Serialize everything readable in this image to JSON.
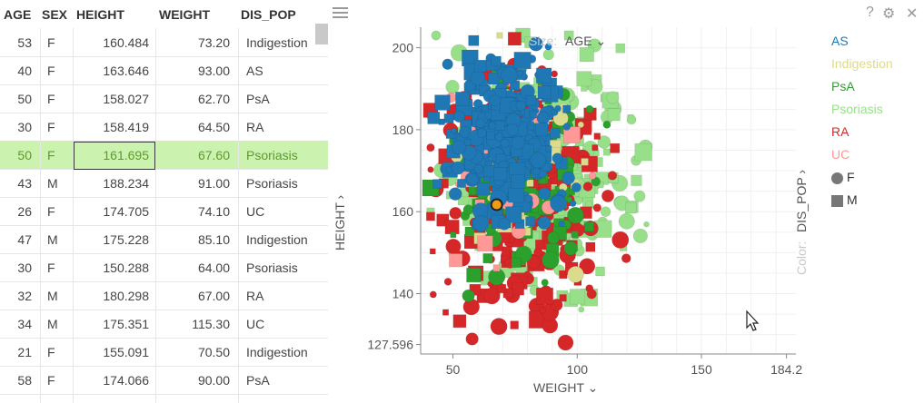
{
  "table": {
    "columns": [
      "AGE",
      "SEX",
      "HEIGHT",
      "WEIGHT",
      "DIS_POP"
    ],
    "rows": [
      [
        "53",
        "F",
        "160.484",
        "73.20",
        "Indigestion"
      ],
      [
        "40",
        "F",
        "163.646",
        "93.00",
        "AS"
      ],
      [
        "50",
        "F",
        "158.027",
        "62.70",
        "PsA"
      ],
      [
        "30",
        "F",
        "158.419",
        "64.50",
        "RA"
      ],
      [
        "50",
        "F",
        "161.695",
        "67.60",
        "Psoriasis"
      ],
      [
        "43",
        "M",
        "188.234",
        "91.00",
        "Psoriasis"
      ],
      [
        "26",
        "F",
        "174.705",
        "74.10",
        "UC"
      ],
      [
        "47",
        "M",
        "175.228",
        "85.10",
        "Indigestion"
      ],
      [
        "30",
        "F",
        "150.288",
        "64.00",
        "Psoriasis"
      ],
      [
        "32",
        "M",
        "180.298",
        "67.00",
        "RA"
      ],
      [
        "34",
        "M",
        "175.351",
        "115.30",
        "UC"
      ],
      [
        "21",
        "F",
        "155.091",
        "70.50",
        "Indigestion"
      ],
      [
        "58",
        "F",
        "174.066",
        "90.00",
        "PsA"
      ]
    ],
    "selected_row": 4
  },
  "toolbar": {
    "help": "?",
    "settings": "⚙",
    "close": "✕"
  },
  "chart_data": {
    "type": "scatter",
    "xlabel": "WEIGHT ⌄",
    "ylabel": "HEIGHT ›",
    "size_label": "Size:",
    "size_value": "AGE ⌄",
    "color_label": "Color:",
    "color_value": "DIS_POP ›",
    "x_ticks": [
      "50",
      "100",
      "150",
      "184.2"
    ],
    "x_tick_values": [
      50,
      100,
      150,
      184.2
    ],
    "y_ticks": [
      "200",
      "180",
      "160",
      "140",
      "127.596"
    ],
    "y_tick_values": [
      200,
      180,
      160,
      140,
      127.596
    ],
    "xlim": [
      37,
      188
    ],
    "ylim": [
      125.5,
      205
    ],
    "highlight": {
      "x": 67.6,
      "y": 161.695
    },
    "series": [
      {
        "name": "AS",
        "color": "#1f77b4"
      },
      {
        "name": "Indigestion",
        "color": "#dbdb8d"
      },
      {
        "name": "PsA",
        "color": "#2ca02c"
      },
      {
        "name": "Psoriasis",
        "color": "#98df8a"
      },
      {
        "name": "RA",
        "color": "#d62728"
      },
      {
        "name": "UC",
        "color": "#ff9896"
      }
    ],
    "shape_legend": [
      {
        "name": "F",
        "shape": "circle"
      },
      {
        "name": "M",
        "shape": "square"
      }
    ]
  }
}
